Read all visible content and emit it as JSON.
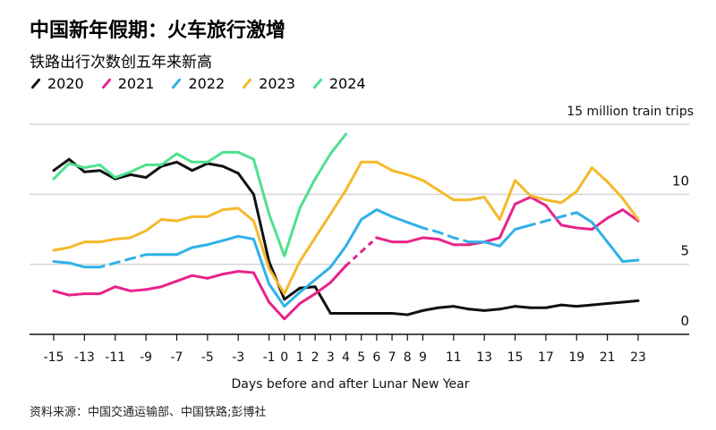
{
  "chart_data": {
    "type": "line",
    "title": "中国新年假期：火车旅行激增",
    "subtitle": "铁路出行次数创五年来新高",
    "unit_label": "15 million train trips",
    "xlabel": "Days before and after Lunar New Year",
    "ylabel": "",
    "source": "资料来源：中国交通运输部、中国铁路;彭博社",
    "xlim": [
      -15,
      23
    ],
    "ylim": [
      0,
      15
    ],
    "y_ticks": [
      0,
      5,
      10
    ],
    "y_tick_labels": [
      "0",
      "5",
      "10"
    ],
    "x_ticks": [
      -15,
      -13,
      -11,
      -9,
      -7,
      -5,
      -3,
      -1,
      0,
      1,
      2,
      3,
      4,
      5,
      6,
      7,
      8,
      9,
      11,
      13,
      15,
      17,
      19,
      21,
      23
    ],
    "grid": true,
    "legend_position": "top-left",
    "series": [
      {
        "name": "2020",
        "color": "#111111",
        "x_start": -15,
        "dashed_segments": [],
        "values": [
          11.7,
          12.5,
          11.6,
          11.7,
          11.1,
          11.4,
          11.2,
          12.0,
          12.3,
          11.7,
          12.2,
          12.0,
          11.5,
          10.0,
          5.2,
          2.5,
          3.3,
          3.4,
          1.5,
          1.5,
          1.5,
          1.5,
          1.5,
          1.4,
          1.7,
          1.9,
          2.0,
          1.8,
          1.7,
          1.8,
          2.0,
          1.9,
          1.9,
          2.1,
          2.0,
          2.1,
          2.2,
          2.3,
          2.4
        ]
      },
      {
        "name": "2021",
        "color": "#e8238a",
        "x_start": -15,
        "dashed_segments": [
          [
            4,
            6
          ]
        ],
        "values": [
          3.1,
          2.8,
          2.9,
          2.9,
          3.4,
          3.1,
          3.2,
          3.4,
          3.8,
          4.2,
          4.0,
          4.3,
          4.5,
          4.4,
          2.3,
          1.1,
          2.2,
          2.9,
          3.7,
          4.9,
          5.9,
          6.9,
          6.6,
          6.6,
          6.9,
          6.8,
          6.4,
          6.4,
          6.6,
          6.9,
          9.3,
          9.8,
          9.2,
          7.8,
          7.6,
          7.5,
          8.3,
          8.9,
          8.1
        ]
      },
      {
        "name": "2022",
        "color": "#2fb1e8",
        "x_start": -15,
        "dashed_segments": [
          [
            -12,
            -9
          ],
          [
            9,
            12
          ],
          [
            16,
            19
          ]
        ],
        "values": [
          5.2,
          5.1,
          4.8,
          4.8,
          5.1,
          5.4,
          5.7,
          5.7,
          5.7,
          6.2,
          6.4,
          6.7,
          7.0,
          6.8,
          3.6,
          2.0,
          3.0,
          3.9,
          4.8,
          6.3,
          8.2,
          8.9,
          8.4,
          8.0,
          7.6,
          7.3,
          6.9,
          6.6,
          6.6,
          6.3,
          7.5,
          7.8,
          8.1,
          8.4,
          8.7,
          8.0,
          6.6,
          5.2,
          5.3
        ]
      },
      {
        "name": "2023",
        "color": "#f5b92a",
        "x_start": -15,
        "dashed_segments": [],
        "values": [
          6.0,
          6.2,
          6.6,
          6.6,
          6.8,
          6.9,
          7.4,
          8.2,
          8.1,
          8.4,
          8.4,
          8.9,
          9.0,
          8.1,
          4.7,
          2.9,
          5.2,
          6.9,
          8.6,
          10.3,
          12.3,
          12.3,
          11.7,
          11.4,
          11.0,
          10.3,
          9.6,
          9.6,
          9.8,
          8.2,
          11.0,
          9.9,
          9.6,
          9.4,
          10.2,
          11.9,
          10.9,
          9.7,
          8.2
        ]
      },
      {
        "name": "2024",
        "color": "#4fe08f",
        "x_start": -15,
        "dashed_segments": [],
        "values": [
          11.1,
          12.2,
          11.9,
          12.1,
          11.2,
          11.6,
          12.1,
          12.1,
          12.9,
          12.3,
          12.3,
          13.0,
          13.0,
          12.5,
          8.6,
          5.6,
          9.0,
          11.1,
          12.9,
          14.3
        ]
      }
    ]
  }
}
